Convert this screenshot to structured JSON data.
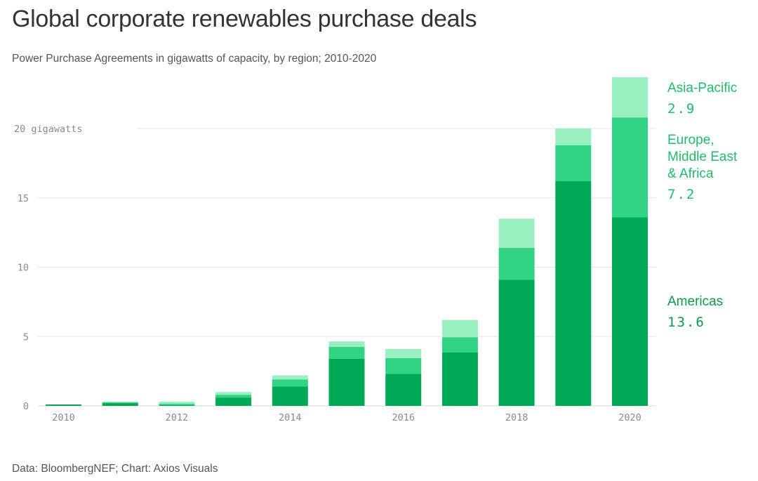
{
  "header": {
    "title": "Global corporate renewables purchase deals",
    "subtitle": "Power Purchase Agreements in gigawatts of capacity, by region; 2010-2020"
  },
  "footer": {
    "source": "Data: BloombergNEF; Chart: Axios Visuals"
  },
  "colors": {
    "americas": "#00a955",
    "emea": "#33d386",
    "apac": "#9bf0c1",
    "americas_label": "#0a9b4e",
    "emea_label": "#1fbd6a",
    "apac_label": "#1fbd6a",
    "grid": "#e6e6e6",
    "tick": "#8a8a8a"
  },
  "chart_data": {
    "type": "bar",
    "stacked": true,
    "title": "Global corporate renewables purchase deals",
    "subtitle": "Power Purchase Agreements in gigawatts of capacity, by region; 2010-2020",
    "xlabel": "",
    "ylabel": "gigawatts",
    "ylim": [
      0,
      24
    ],
    "grid": true,
    "y_ticks": [
      0,
      5,
      10,
      15,
      20
    ],
    "y_tick_labels": [
      "0",
      "5",
      "10",
      "15",
      "20 gigawatts"
    ],
    "categories": [
      "2010",
      "2011",
      "2012",
      "2013",
      "2014",
      "2015",
      "2016",
      "2017",
      "2018",
      "2019",
      "2020"
    ],
    "x_tick_labels": [
      "2010",
      "",
      "2012",
      "",
      "2014",
      "",
      "2016",
      "",
      "2018",
      "",
      "2020"
    ],
    "series": [
      {
        "name": "Americas",
        "values": [
          0.1,
          0.2,
          0.05,
          0.6,
          1.4,
          3.4,
          2.3,
          3.85,
          9.1,
          16.2,
          13.6
        ]
      },
      {
        "name": "Europe, Middle East & Africa",
        "values": [
          0.0,
          0.05,
          0.1,
          0.2,
          0.5,
          0.85,
          1.15,
          1.1,
          2.3,
          2.6,
          7.2
        ]
      },
      {
        "name": "Asia-Pacific",
        "values": [
          0.0,
          0.05,
          0.15,
          0.2,
          0.3,
          0.4,
          0.65,
          1.25,
          2.1,
          1.2,
          2.9
        ]
      }
    ],
    "legend": "right",
    "annotations": [
      {
        "series": "Asia-Pacific",
        "name_lines": [
          "Asia-Pacific"
        ],
        "value": "2.9"
      },
      {
        "series": "Europe, Middle East & Africa",
        "name_lines": [
          "Europe,",
          "Middle East",
          "& Africa"
        ],
        "value": "7.2"
      },
      {
        "series": "Americas",
        "name_lines": [
          "Americas"
        ],
        "value": "13.6"
      }
    ]
  }
}
